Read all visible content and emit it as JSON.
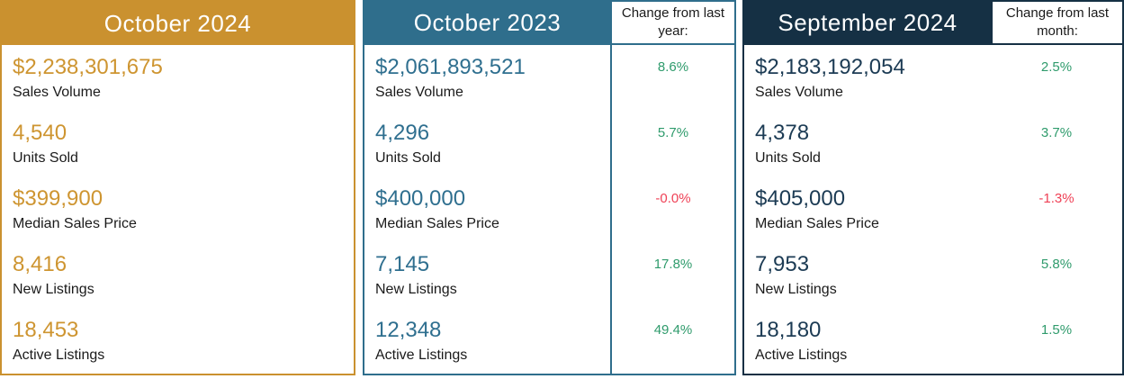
{
  "colors": {
    "gold": "#CA912F",
    "teal": "#2F6E8C",
    "navy": "#153044",
    "positive_green": "#2F9B6C",
    "negative_red": "#EF4156",
    "label_text": "#1A1A1A"
  },
  "chart_data": {
    "type": "table",
    "row_labels": [
      "Sales Volume",
      "Units Sold",
      "Median Sales Price",
      "New Listings",
      "Active Listings"
    ],
    "columns": [
      {
        "title": "October 2024",
        "accent": "#CA912F",
        "values": [
          "$2,238,301,675",
          "4,540",
          "$399,900",
          "8,416",
          "18,453"
        ]
      },
      {
        "title": "October 2023",
        "accent": "#2F6E8C",
        "change_label": "Change from last year:",
        "values": [
          "$2,061,893,521",
          "4,296",
          "$400,000",
          "7,145",
          "12,348"
        ],
        "changes": [
          {
            "text": "8.6%",
            "dir": "up"
          },
          {
            "text": "5.7%",
            "dir": "up"
          },
          {
            "text": "-0.0%",
            "dir": "down"
          },
          {
            "text": "17.8%",
            "dir": "up"
          },
          {
            "text": "49.4%",
            "dir": "up"
          }
        ]
      },
      {
        "title": "September 2024",
        "accent": "#153044",
        "change_label": "Change from last month:",
        "values": [
          "$2,183,192,054",
          "4,378",
          "$405,000",
          "7,953",
          "18,180"
        ],
        "changes": [
          {
            "text": "2.5%",
            "dir": "up"
          },
          {
            "text": "3.7%",
            "dir": "up"
          },
          {
            "text": "-1.3%",
            "dir": "down"
          },
          {
            "text": "5.8%",
            "dir": "up"
          },
          {
            "text": "1.5%",
            "dir": "up"
          }
        ]
      }
    ]
  }
}
